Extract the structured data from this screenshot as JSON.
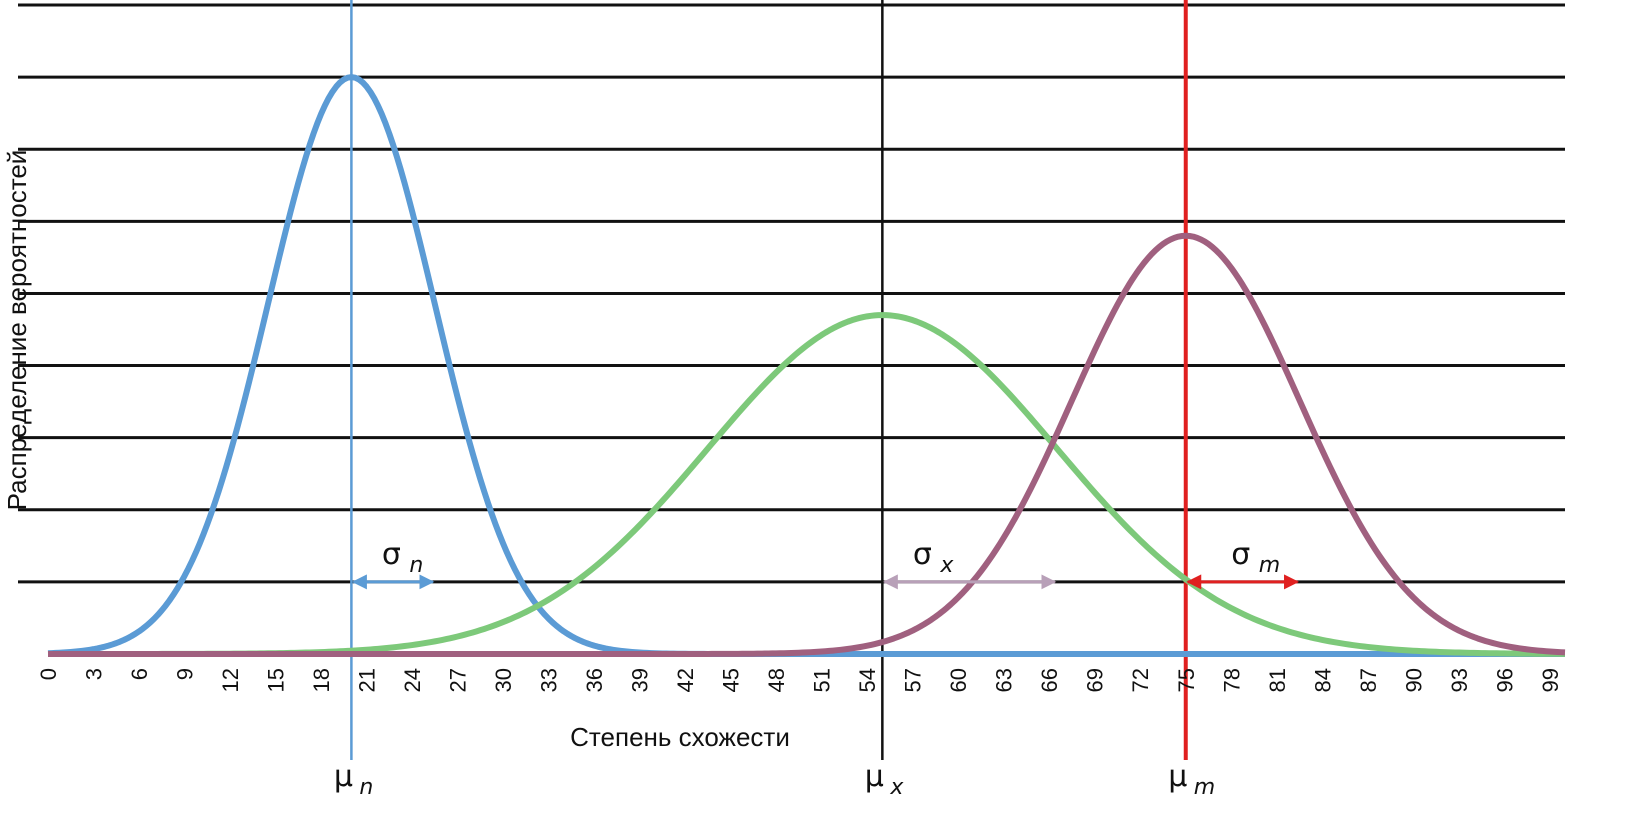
{
  "chart_data": {
    "type": "line",
    "title": "",
    "xlabel": "Степень схожести",
    "ylabel": "Распределение вероятностей",
    "xlim": [
      0,
      100
    ],
    "xticks": [
      0,
      3,
      6,
      9,
      12,
      15,
      18,
      21,
      24,
      27,
      30,
      33,
      36,
      39,
      42,
      45,
      48,
      51,
      54,
      57,
      60,
      63,
      66,
      69,
      72,
      75,
      78,
      81,
      84,
      87,
      90,
      93,
      96,
      99
    ],
    "ylim": [
      0,
      9
    ],
    "grid": "horizontal",
    "grid_count": 9,
    "series": [
      {
        "mean": 20,
        "sd": 5.5,
        "peak": 8.0,
        "color": "#5b9bd5",
        "mean_color": "#5b9bd5",
        "mean_label": "μ",
        "mean_sub": "n",
        "sigma_label": "σ",
        "sigma_sub": "n",
        "arrow_color": "#5b9bd5"
      },
      {
        "mean": 55,
        "sd": 11.5,
        "peak": 4.7,
        "color": "#7dc97a",
        "mean_color": "#111111",
        "mean_label": "μ",
        "mean_sub": "x",
        "sigma_label": "σ",
        "sigma_sub": "x",
        "arrow_color": "#b8a0b8"
      },
      {
        "mean": 75,
        "sd": 7.5,
        "peak": 5.8,
        "color": "#a0607f",
        "mean_color": "#e02020",
        "mean_label": "μ",
        "mean_sub": "m",
        "sigma_label": "σ",
        "sigma_sub": "m",
        "arrow_color": "#e02020"
      }
    ]
  }
}
